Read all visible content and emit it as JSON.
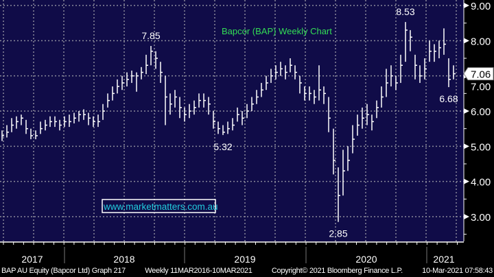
{
  "chart_data": {
    "type": "ohlc-bar",
    "title": "Bapcor (BAP) Weekly Chart",
    "watermark": "www.marketmatters.com.au",
    "ylim": [
      2.4,
      9.2
    ],
    "yticks": [
      "9.00",
      "8.00",
      "7.00",
      "6.00",
      "5.00",
      "4.00",
      "3.00"
    ],
    "ytick_values": [
      9,
      8,
      7,
      6,
      5,
      4,
      3
    ],
    "x_years": [
      "2017",
      "2018",
      "2019",
      "2020",
      "2021"
    ],
    "last_price": "7.06",
    "annotations": [
      {
        "text": "7.85",
        "bar": 31
      },
      {
        "text": "5.32",
        "bar": 46
      },
      {
        "text": "2.85",
        "bar": 70
      },
      {
        "text": "8.53",
        "bar": 84
      },
      {
        "text": "6.68",
        "bar": 93
      }
    ],
    "bars_low_high_close": [
      [
        5.15,
        5.45,
        5.3
      ],
      [
        5.25,
        5.6,
        5.4
      ],
      [
        5.4,
        5.8,
        5.6
      ],
      [
        5.5,
        5.85,
        5.7
      ],
      [
        5.6,
        5.9,
        5.8
      ],
      [
        5.35,
        5.75,
        5.5
      ],
      [
        5.2,
        5.5,
        5.3
      ],
      [
        5.2,
        5.45,
        5.3
      ],
      [
        5.35,
        5.7,
        5.5
      ],
      [
        5.45,
        5.75,
        5.6
      ],
      [
        5.55,
        5.85,
        5.7
      ],
      [
        5.55,
        5.85,
        5.7
      ],
      [
        5.45,
        5.75,
        5.6
      ],
      [
        5.55,
        5.85,
        5.7
      ],
      [
        5.55,
        5.9,
        5.7
      ],
      [
        5.65,
        5.95,
        5.8
      ],
      [
        5.7,
        6.0,
        5.9
      ],
      [
        5.75,
        6.05,
        5.9
      ],
      [
        5.6,
        5.95,
        5.8
      ],
      [
        5.55,
        5.85,
        5.7
      ],
      [
        5.55,
        5.9,
        5.7
      ],
      [
        5.75,
        6.2,
        6.0
      ],
      [
        6.1,
        6.5,
        6.3
      ],
      [
        6.3,
        6.7,
        6.5
      ],
      [
        6.5,
        6.9,
        6.7
      ],
      [
        6.6,
        7.0,
        6.8
      ],
      [
        6.7,
        7.1,
        6.9
      ],
      [
        6.8,
        7.15,
        7.0
      ],
      [
        6.55,
        7.1,
        7.0
      ],
      [
        6.9,
        7.25,
        7.1
      ],
      [
        7.05,
        7.6,
        7.3
      ],
      [
        7.3,
        7.85,
        7.7
      ],
      [
        7.2,
        7.7,
        7.5
      ],
      [
        6.8,
        7.4,
        7.1
      ],
      [
        5.6,
        7.0,
        6.4
      ],
      [
        5.9,
        6.5,
        6.2
      ],
      [
        6.1,
        6.6,
        6.4
      ],
      [
        5.8,
        6.4,
        6.1
      ],
      [
        5.7,
        6.1,
        5.9
      ],
      [
        5.8,
        6.2,
        6.0
      ],
      [
        5.9,
        6.3,
        6.1
      ],
      [
        6.1,
        6.5,
        6.3
      ],
      [
        6.1,
        6.5,
        6.3
      ],
      [
        5.9,
        6.4,
        6.2
      ],
      [
        5.5,
        6.0,
        5.7
      ],
      [
        5.35,
        5.7,
        5.5
      ],
      [
        5.32,
        5.6,
        5.4
      ],
      [
        5.35,
        5.7,
        5.5
      ],
      [
        5.45,
        5.8,
        5.6
      ],
      [
        5.7,
        6.1,
        5.9
      ],
      [
        5.6,
        6.0,
        5.8
      ],
      [
        5.8,
        6.2,
        6.0
      ],
      [
        6.0,
        6.4,
        6.2
      ],
      [
        6.2,
        6.6,
        6.4
      ],
      [
        6.4,
        6.8,
        6.6
      ],
      [
        6.6,
        7.0,
        6.8
      ],
      [
        6.8,
        7.2,
        7.0
      ],
      [
        6.9,
        7.3,
        7.1
      ],
      [
        7.0,
        7.4,
        7.2
      ],
      [
        6.9,
        7.3,
        7.1
      ],
      [
        7.1,
        7.5,
        7.3
      ],
      [
        6.9,
        7.3,
        7.1
      ],
      [
        6.5,
        7.0,
        6.8
      ],
      [
        6.3,
        6.7,
        6.5
      ],
      [
        6.3,
        6.7,
        6.5
      ],
      [
        6.2,
        6.6,
        6.4
      ],
      [
        6.3,
        7.3,
        6.6
      ],
      [
        6.2,
        6.7,
        6.5
      ],
      [
        5.4,
        6.4,
        5.8
      ],
      [
        4.2,
        5.5,
        4.6
      ],
      [
        2.85,
        4.4,
        3.6
      ],
      [
        3.6,
        4.9,
        4.3
      ],
      [
        4.3,
        5.0,
        4.6
      ],
      [
        4.8,
        5.6,
        5.2
      ],
      [
        5.3,
        5.9,
        5.6
      ],
      [
        5.5,
        6.1,
        5.8
      ],
      [
        5.6,
        6.2,
        5.9
      ],
      [
        5.45,
        5.9,
        5.7
      ],
      [
        5.8,
        6.3,
        6.1
      ],
      [
        6.1,
        6.7,
        6.4
      ],
      [
        6.4,
        7.2,
        6.8
      ],
      [
        6.7,
        7.3,
        7.0
      ],
      [
        6.6,
        7.0,
        6.8
      ],
      [
        6.8,
        7.6,
        7.3
      ],
      [
        7.4,
        8.53,
        8.3
      ],
      [
        7.7,
        8.3,
        8.1
      ],
      [
        6.9,
        7.6,
        7.3
      ],
      [
        6.8,
        7.3,
        7.0
      ],
      [
        6.9,
        7.5,
        7.2
      ],
      [
        7.4,
        8.0,
        7.7
      ],
      [
        7.4,
        7.9,
        7.7
      ],
      [
        7.5,
        8.0,
        7.8
      ],
      [
        7.6,
        8.35,
        7.9
      ],
      [
        6.68,
        7.5,
        6.9
      ],
      [
        6.9,
        7.3,
        7.06
      ]
    ]
  },
  "footer": {
    "security": "BAP AU Equity (Bapcor Ltd) Graph 217",
    "period": "Weekly 11MAR2016-10MAR2021",
    "copyright": "Copyright© 2021 Bloomberg Finance L.P.",
    "timestamp": "10-Mar-2021 07:58:43"
  },
  "colors": {
    "background": "#100c48",
    "grid": "#8a8a9a",
    "bars": "#ffffff",
    "title": "#33dd55",
    "labels": "#ffffff",
    "watermark": "#22ccdd"
  }
}
